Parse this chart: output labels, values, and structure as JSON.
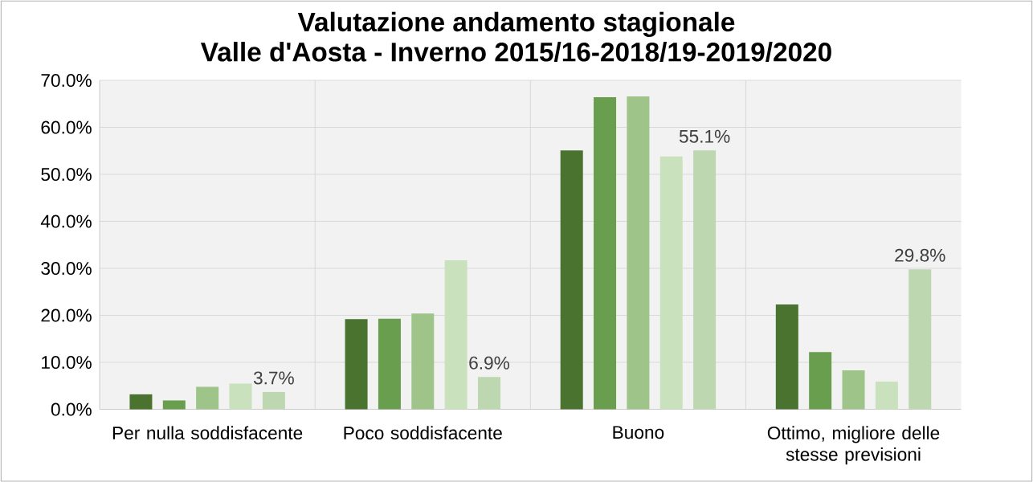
{
  "chart_data": {
    "type": "bar",
    "title": "Valutazione andamento stagionale",
    "subtitle": "Valle d'Aosta - Inverno 2015/16-2018/19-2019/2020",
    "categories": [
      "Per nulla soddisfacente",
      "Poco soddisfacente",
      "Buono",
      "Ottimo, migliore delle stesse previsioni"
    ],
    "series": [
      {
        "color": "#4a7330",
        "values": [
          3.2,
          19.2,
          55.1,
          22.3
        ]
      },
      {
        "color": "#6a9e4f",
        "values": [
          1.9,
          19.3,
          66.4,
          12.2
        ]
      },
      {
        "color": "#9fc48a",
        "values": [
          4.8,
          20.4,
          66.6,
          8.3
        ]
      },
      {
        "color": "#c9e2bd",
        "values": [
          5.5,
          31.7,
          53.8,
          5.9
        ]
      },
      {
        "color": "#bdd7b1",
        "values": [
          3.7,
          6.9,
          55.1,
          29.8
        ],
        "value_labels": [
          "3.7%",
          "6.9%",
          "55.1%",
          "29.8%"
        ]
      }
    ],
    "ylim": [
      0,
      70
    ],
    "yticks": [
      {
        "value": 0,
        "label": "0.0%"
      },
      {
        "value": 10,
        "label": "10.0%"
      },
      {
        "value": 20,
        "label": "20.0%"
      },
      {
        "value": 30,
        "label": "30.0%"
      },
      {
        "value": 40,
        "label": "40.0%"
      },
      {
        "value": 50,
        "label": "50.0%"
      },
      {
        "value": 60,
        "label": "60.0%"
      },
      {
        "value": 70,
        "label": "70.0%"
      }
    ],
    "grid": true
  }
}
